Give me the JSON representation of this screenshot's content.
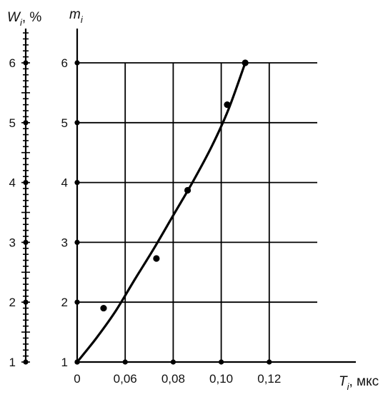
{
  "chart_data": {
    "type": "scatter",
    "x_axis": {
      "title_main": "T",
      "title_sub": "i",
      "title_unit": ", мкс",
      "range": [
        0.04,
        0.14
      ],
      "ticks": [
        {
          "value": 0.04,
          "label": "0"
        },
        {
          "value": 0.06,
          "label": "0,06"
        },
        {
          "value": 0.08,
          "label": "0,08"
        },
        {
          "value": 0.1,
          "label": "0,10"
        },
        {
          "value": 0.12,
          "label": "0,12"
        }
      ]
    },
    "y_axis_m": {
      "title_main": "m",
      "title_sub": "i",
      "range": [
        1,
        6
      ],
      "ticks": [
        {
          "value": 1,
          "label": "1"
        },
        {
          "value": 2,
          "label": "2"
        },
        {
          "value": 3,
          "label": "3"
        },
        {
          "value": 4,
          "label": "4"
        },
        {
          "value": 5,
          "label": "5"
        },
        {
          "value": 6,
          "label": "6"
        }
      ]
    },
    "y_axis_w": {
      "title_main": "W",
      "title_sub": "i",
      "title_unit": ", %",
      "range": [
        1,
        6
      ],
      "ticks": [
        {
          "value": 1,
          "label": "1"
        },
        {
          "value": 2,
          "label": "2"
        },
        {
          "value": 3,
          "label": "3"
        },
        {
          "value": 4,
          "label": "4"
        },
        {
          "value": 5,
          "label": "5"
        },
        {
          "value": 6,
          "label": "6"
        }
      ]
    },
    "series": [
      {
        "points": [
          {
            "x": 0.051,
            "y": 1.9
          },
          {
            "x": 0.073,
            "y": 2.73
          },
          {
            "x": 0.086,
            "y": 3.87
          },
          {
            "x": 0.1025,
            "y": 5.3
          },
          {
            "x": 0.11,
            "y": 6.0
          }
        ]
      }
    ],
    "fit_curve": [
      {
        "x": 0.04,
        "y": 1.0
      },
      {
        "x": 0.048,
        "y": 1.4
      },
      {
        "x": 0.056,
        "y": 1.85
      },
      {
        "x": 0.064,
        "y": 2.38
      },
      {
        "x": 0.072,
        "y": 2.9
      },
      {
        "x": 0.08,
        "y": 3.45
      },
      {
        "x": 0.088,
        "y": 4.0
      },
      {
        "x": 0.096,
        "y": 4.6
      },
      {
        "x": 0.103,
        "y": 5.22
      },
      {
        "x": 0.11,
        "y": 6.0
      }
    ],
    "grid": true,
    "colors": {
      "ink": "#000000"
    }
  }
}
